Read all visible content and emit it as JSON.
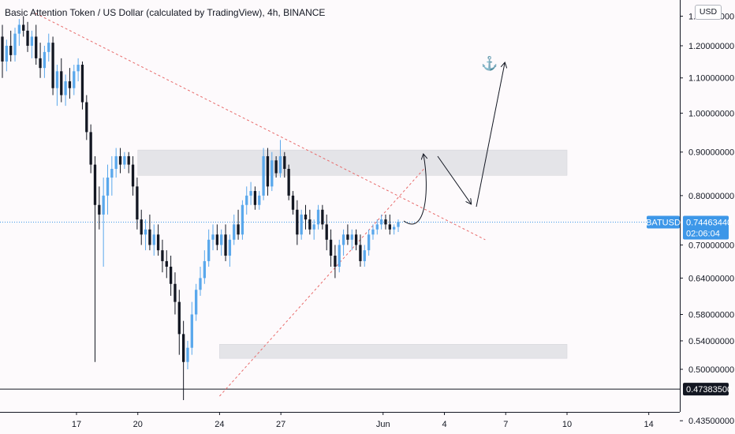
{
  "title": "Basic Attention Token / US Dollar (calculated by TradingView), 4h, BINANCE",
  "currency_button": "USD",
  "symbol_tag": "BATUSD",
  "last_price_label": "0.74463440",
  "countdown_label": "02:06:04",
  "level_label": "0.47383500",
  "anchor_glyph": "⚓",
  "colors": {
    "up": "#5aa8ec",
    "down": "#131722",
    "trend": "#e86b6b",
    "zone": "#e4e4e8",
    "tag": "#3d97e8"
  },
  "chart_data": {
    "type": "candlestick",
    "title": "Basic Attention Token / US Dollar (calculated by TradingView), 4h, BINANCE",
    "y_scale": "log",
    "ylim": [
      0.4,
      1.35
    ],
    "y_ticks": [
      "1.30000000",
      "1.20000000",
      "1.10000000",
      "1.00000000",
      "0.90000000",
      "0.80000000",
      "0.70000000",
      "0.64000000",
      "0.58000000",
      "0.54000000",
      "0.50000000",
      "0.43500000"
    ],
    "x_ticks": [
      "17",
      "20",
      "24",
      "27",
      "Jun",
      "4",
      "7",
      "10",
      "14"
    ],
    "x_dates": [
      "2020-05-17",
      "2020-05-20",
      "2020-05-24",
      "2020-05-27",
      "2020-06-01",
      "2020-06-04",
      "2020-06-07",
      "2020-06-10",
      "2020-06-14"
    ],
    "candles": [
      {
        "o": 1.23,
        "h": 1.27,
        "l": 1.1,
        "c": 1.15
      },
      {
        "o": 1.15,
        "h": 1.22,
        "l": 1.12,
        "c": 1.2
      },
      {
        "o": 1.2,
        "h": 1.25,
        "l": 1.15,
        "c": 1.17
      },
      {
        "o": 1.17,
        "h": 1.26,
        "l": 1.15,
        "c": 1.24
      },
      {
        "o": 1.24,
        "h": 1.29,
        "l": 1.2,
        "c": 1.27
      },
      {
        "o": 1.27,
        "h": 1.3,
        "l": 1.23,
        "c": 1.25
      },
      {
        "o": 1.25,
        "h": 1.28,
        "l": 1.18,
        "c": 1.2
      },
      {
        "o": 1.2,
        "h": 1.25,
        "l": 1.16,
        "c": 1.23
      },
      {
        "o": 1.23,
        "h": 1.27,
        "l": 1.14,
        "c": 1.16
      },
      {
        "o": 1.16,
        "h": 1.21,
        "l": 1.1,
        "c": 1.13
      },
      {
        "o": 1.13,
        "h": 1.2,
        "l": 1.1,
        "c": 1.18
      },
      {
        "o": 1.18,
        "h": 1.24,
        "l": 1.15,
        "c": 1.21
      },
      {
        "o": 1.21,
        "h": 1.23,
        "l": 1.05,
        "c": 1.07
      },
      {
        "o": 1.07,
        "h": 1.14,
        "l": 1.02,
        "c": 1.12
      },
      {
        "o": 1.12,
        "h": 1.16,
        "l": 1.03,
        "c": 1.05
      },
      {
        "o": 1.05,
        "h": 1.11,
        "l": 1.02,
        "c": 1.09
      },
      {
        "o": 1.09,
        "h": 1.13,
        "l": 1.04,
        "c": 1.07
      },
      {
        "o": 1.07,
        "h": 1.14,
        "l": 1.05,
        "c": 1.12
      },
      {
        "o": 1.12,
        "h": 1.16,
        "l": 1.09,
        "c": 1.14
      },
      {
        "o": 1.14,
        "h": 1.15,
        "l": 1.01,
        "c": 1.03
      },
      {
        "o": 1.03,
        "h": 1.05,
        "l": 0.93,
        "c": 0.95
      },
      {
        "o": 0.95,
        "h": 0.97,
        "l": 0.85,
        "c": 0.87
      },
      {
        "o": 0.87,
        "h": 0.89,
        "l": 0.51,
        "c": 0.78
      },
      {
        "o": 0.78,
        "h": 0.82,
        "l": 0.73,
        "c": 0.76
      },
      {
        "o": 0.76,
        "h": 0.84,
        "l": 0.66,
        "c": 0.8
      },
      {
        "o": 0.8,
        "h": 0.87,
        "l": 0.76,
        "c": 0.84
      },
      {
        "o": 0.84,
        "h": 0.89,
        "l": 0.8,
        "c": 0.86
      },
      {
        "o": 0.86,
        "h": 0.91,
        "l": 0.84,
        "c": 0.89
      },
      {
        "o": 0.89,
        "h": 0.91,
        "l": 0.85,
        "c": 0.87
      },
      {
        "o": 0.87,
        "h": 0.9,
        "l": 0.86,
        "c": 0.89
      },
      {
        "o": 0.89,
        "h": 0.9,
        "l": 0.85,
        "c": 0.87
      },
      {
        "o": 0.87,
        "h": 0.89,
        "l": 0.8,
        "c": 0.82
      },
      {
        "o": 0.82,
        "h": 0.84,
        "l": 0.73,
        "c": 0.75
      },
      {
        "o": 0.75,
        "h": 0.77,
        "l": 0.7,
        "c": 0.72
      },
      {
        "o": 0.72,
        "h": 0.75,
        "l": 0.69,
        "c": 0.73
      },
      {
        "o": 0.73,
        "h": 0.76,
        "l": 0.69,
        "c": 0.7
      },
      {
        "o": 0.7,
        "h": 0.74,
        "l": 0.68,
        "c": 0.72
      },
      {
        "o": 0.72,
        "h": 0.74,
        "l": 0.68,
        "c": 0.69
      },
      {
        "o": 0.69,
        "h": 0.71,
        "l": 0.65,
        "c": 0.67
      },
      {
        "o": 0.67,
        "h": 0.69,
        "l": 0.64,
        "c": 0.66
      },
      {
        "o": 0.66,
        "h": 0.68,
        "l": 0.61,
        "c": 0.63
      },
      {
        "o": 0.63,
        "h": 0.65,
        "l": 0.58,
        "c": 0.6
      },
      {
        "o": 0.6,
        "h": 0.62,
        "l": 0.52,
        "c": 0.55
      },
      {
        "o": 0.55,
        "h": 0.57,
        "l": 0.46,
        "c": 0.51
      },
      {
        "o": 0.51,
        "h": 0.54,
        "l": 0.5,
        "c": 0.53
      },
      {
        "o": 0.53,
        "h": 0.6,
        "l": 0.52,
        "c": 0.58
      },
      {
        "o": 0.58,
        "h": 0.63,
        "l": 0.57,
        "c": 0.62
      },
      {
        "o": 0.62,
        "h": 0.66,
        "l": 0.61,
        "c": 0.64
      },
      {
        "o": 0.64,
        "h": 0.69,
        "l": 0.63,
        "c": 0.67
      },
      {
        "o": 0.67,
        "h": 0.73,
        "l": 0.66,
        "c": 0.71
      },
      {
        "o": 0.71,
        "h": 0.74,
        "l": 0.69,
        "c": 0.72
      },
      {
        "o": 0.72,
        "h": 0.74,
        "l": 0.69,
        "c": 0.7
      },
      {
        "o": 0.7,
        "h": 0.73,
        "l": 0.68,
        "c": 0.72
      },
      {
        "o": 0.72,
        "h": 0.74,
        "l": 0.67,
        "c": 0.68
      },
      {
        "o": 0.68,
        "h": 0.72,
        "l": 0.66,
        "c": 0.71
      },
      {
        "o": 0.71,
        "h": 0.76,
        "l": 0.7,
        "c": 0.74
      },
      {
        "o": 0.74,
        "h": 0.77,
        "l": 0.71,
        "c": 0.72
      },
      {
        "o": 0.72,
        "h": 0.79,
        "l": 0.71,
        "c": 0.78
      },
      {
        "o": 0.78,
        "h": 0.82,
        "l": 0.76,
        "c": 0.8
      },
      {
        "o": 0.8,
        "h": 0.83,
        "l": 0.78,
        "c": 0.81
      },
      {
        "o": 0.81,
        "h": 0.82,
        "l": 0.77,
        "c": 0.78
      },
      {
        "o": 0.78,
        "h": 0.81,
        "l": 0.77,
        "c": 0.8
      },
      {
        "o": 0.8,
        "h": 0.91,
        "l": 0.79,
        "c": 0.89
      },
      {
        "o": 0.89,
        "h": 0.91,
        "l": 0.8,
        "c": 0.82
      },
      {
        "o": 0.82,
        "h": 0.9,
        "l": 0.81,
        "c": 0.88
      },
      {
        "o": 0.88,
        "h": 0.89,
        "l": 0.84,
        "c": 0.85
      },
      {
        "o": 0.85,
        "h": 0.93,
        "l": 0.84,
        "c": 0.89
      },
      {
        "o": 0.89,
        "h": 0.9,
        "l": 0.84,
        "c": 0.86
      },
      {
        "o": 0.86,
        "h": 0.87,
        "l": 0.79,
        "c": 0.8
      },
      {
        "o": 0.8,
        "h": 0.81,
        "l": 0.76,
        "c": 0.77
      },
      {
        "o": 0.77,
        "h": 0.79,
        "l": 0.7,
        "c": 0.72
      },
      {
        "o": 0.72,
        "h": 0.77,
        "l": 0.71,
        "c": 0.76
      },
      {
        "o": 0.76,
        "h": 0.78,
        "l": 0.73,
        "c": 0.75
      },
      {
        "o": 0.75,
        "h": 0.77,
        "l": 0.72,
        "c": 0.73
      },
      {
        "o": 0.73,
        "h": 0.75,
        "l": 0.71,
        "c": 0.74
      },
      {
        "o": 0.74,
        "h": 0.78,
        "l": 0.73,
        "c": 0.77
      },
      {
        "o": 0.77,
        "h": 0.78,
        "l": 0.73,
        "c": 0.74
      },
      {
        "o": 0.74,
        "h": 0.76,
        "l": 0.69,
        "c": 0.71
      },
      {
        "o": 0.71,
        "h": 0.73,
        "l": 0.66,
        "c": 0.68
      },
      {
        "o": 0.68,
        "h": 0.7,
        "l": 0.64,
        "c": 0.66
      },
      {
        "o": 0.66,
        "h": 0.71,
        "l": 0.65,
        "c": 0.7
      },
      {
        "o": 0.7,
        "h": 0.73,
        "l": 0.68,
        "c": 0.72
      },
      {
        "o": 0.72,
        "h": 0.74,
        "l": 0.7,
        "c": 0.71
      },
      {
        "o": 0.71,
        "h": 0.73,
        "l": 0.69,
        "c": 0.72
      },
      {
        "o": 0.72,
        "h": 0.73,
        "l": 0.69,
        "c": 0.7
      },
      {
        "o": 0.7,
        "h": 0.72,
        "l": 0.66,
        "c": 0.67
      },
      {
        "o": 0.67,
        "h": 0.7,
        "l": 0.66,
        "c": 0.69
      },
      {
        "o": 0.69,
        "h": 0.73,
        "l": 0.68,
        "c": 0.72
      },
      {
        "o": 0.72,
        "h": 0.74,
        "l": 0.71,
        "c": 0.73
      },
      {
        "o": 0.73,
        "h": 0.75,
        "l": 0.72,
        "c": 0.74
      },
      {
        "o": 0.74,
        "h": 0.76,
        "l": 0.73,
        "c": 0.75
      },
      {
        "o": 0.75,
        "h": 0.76,
        "l": 0.73,
        "c": 0.74
      },
      {
        "o": 0.74,
        "h": 0.76,
        "l": 0.72,
        "c": 0.73
      },
      {
        "o": 0.73,
        "h": 0.74,
        "l": 0.72,
        "c": 0.735
      },
      {
        "o": 0.735,
        "h": 0.75,
        "l": 0.725,
        "c": 0.745
      }
    ],
    "last_price": 0.7446344,
    "support_level": 0.473835,
    "zones": [
      {
        "from": 0.845,
        "to": 0.905,
        "start": "2020-05-20",
        "end": "2020-06-10"
      },
      {
        "from": 0.515,
        "to": 0.535,
        "start": "2020-05-24",
        "end": "2020-06-10"
      }
    ],
    "trendlines": [
      {
        "style": "dashed",
        "from": {
          "date": "2020-05-15",
          "price": 1.31
        },
        "to": {
          "date": "2020-06-06",
          "price": 0.71
        }
      },
      {
        "style": "dashed",
        "from": {
          "date": "2020-05-24",
          "price": 0.465
        },
        "to": {
          "date": "2020-06-03",
          "price": 0.86
        }
      }
    ]
  }
}
